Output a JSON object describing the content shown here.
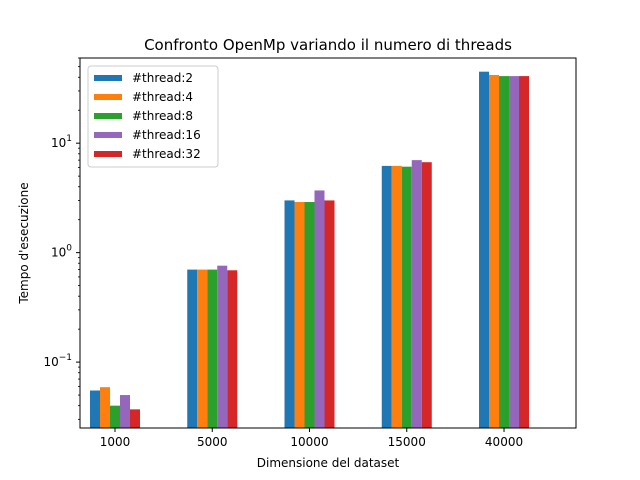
{
  "chart_data": {
    "type": "bar",
    "title": "Confronto OpenMp variando il numero di threads",
    "xlabel": "Dimensione del dataset",
    "ylabel": "Tempo d'esecuzione",
    "yscale": "log",
    "ylim": [
      0.025,
      60
    ],
    "grid": false,
    "legend_position": "top-left",
    "categories": [
      "1000",
      "5000",
      "10000",
      "15000",
      "40000"
    ],
    "y_ticks": [
      {
        "value": 0.1,
        "base": "10",
        "exp": "−1"
      },
      {
        "value": 1,
        "base": "10",
        "exp": "0"
      },
      {
        "value": 10,
        "base": "10",
        "exp": "1"
      }
    ],
    "series": [
      {
        "name": "#thread:2",
        "color": "#1f77b4",
        "values": [
          0.055,
          0.7,
          3.0,
          6.2,
          45
        ]
      },
      {
        "name": "#thread:4",
        "color": "#ff7f0e",
        "values": [
          0.059,
          0.7,
          2.9,
          6.2,
          42
        ]
      },
      {
        "name": "#thread:8",
        "color": "#2ca02c",
        "values": [
          0.04,
          0.7,
          2.9,
          6.1,
          41
        ]
      },
      {
        "name": "#thread:16",
        "color": "#9467bd",
        "values": [
          0.05,
          0.76,
          3.7,
          7.0,
          41
        ]
      },
      {
        "name": "#thread:32",
        "color": "#d62728",
        "values": [
          0.037,
          0.69,
          3.0,
          6.7,
          41
        ]
      }
    ]
  }
}
